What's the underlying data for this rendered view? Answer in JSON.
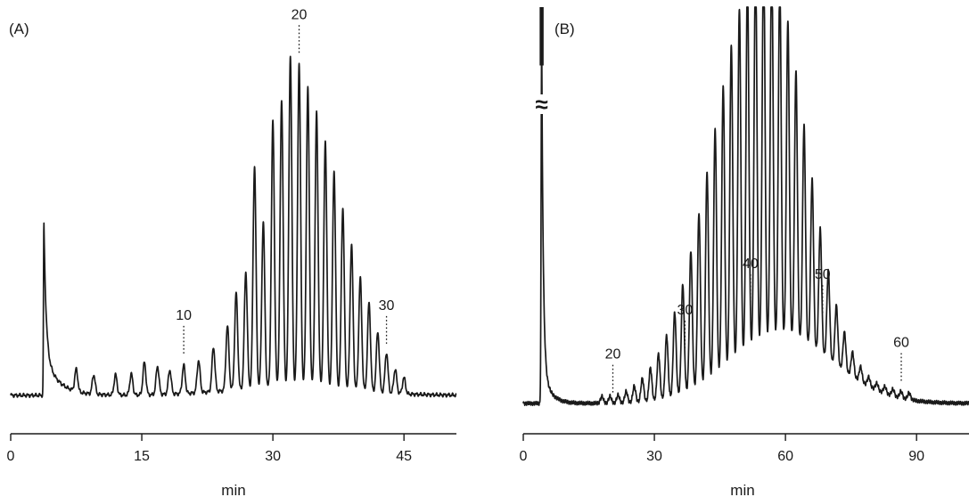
{
  "chart_data": [
    {
      "type": "line",
      "panel_label": "(A)",
      "xlabel": "min",
      "ylabel": "",
      "xlim": [
        0,
        51
      ],
      "ylim": [
        0,
        1
      ],
      "xticks": [
        0,
        15,
        30,
        45
      ],
      "x_tick_labels": [
        "0",
        "15",
        "30",
        "45"
      ],
      "grid": false,
      "solvent_peak": {
        "x": 3.8,
        "y": 0.43
      },
      "baseline": 0.04,
      "peaks": [
        {
          "x": 7.5,
          "y": 0.055
        },
        {
          "x": 9.5,
          "y": 0.048
        },
        {
          "x": 12.0,
          "y": 0.05
        },
        {
          "x": 13.8,
          "y": 0.052
        },
        {
          "x": 15.3,
          "y": 0.08
        },
        {
          "x": 16.8,
          "y": 0.07
        },
        {
          "x": 18.2,
          "y": 0.06
        },
        {
          "x": 19.8,
          "y": 0.07
        },
        {
          "x": 21.5,
          "y": 0.08
        },
        {
          "x": 23.2,
          "y": 0.11
        },
        {
          "x": 24.8,
          "y": 0.16
        },
        {
          "x": 25.8,
          "y": 0.24
        },
        {
          "x": 26.9,
          "y": 0.29
        },
        {
          "x": 27.9,
          "y": 0.55
        },
        {
          "x": 28.9,
          "y": 0.41
        },
        {
          "x": 30.0,
          "y": 0.66
        },
        {
          "x": 31.0,
          "y": 0.71
        },
        {
          "x": 32.0,
          "y": 0.82
        },
        {
          "x": 33.0,
          "y": 0.8
        },
        {
          "x": 34.0,
          "y": 0.74
        },
        {
          "x": 35.0,
          "y": 0.68
        },
        {
          "x": 36.0,
          "y": 0.61
        },
        {
          "x": 37.0,
          "y": 0.54
        },
        {
          "x": 38.0,
          "y": 0.45
        },
        {
          "x": 39.0,
          "y": 0.36
        },
        {
          "x": 40.0,
          "y": 0.28
        },
        {
          "x": 41.0,
          "y": 0.22
        },
        {
          "x": 42.0,
          "y": 0.15
        },
        {
          "x": 43.0,
          "y": 0.1
        },
        {
          "x": 44.0,
          "y": 0.06
        },
        {
          "x": 45.0,
          "y": 0.04
        }
      ],
      "annotations": [
        {
          "label": "10",
          "x": 19.8
        },
        {
          "label": "20",
          "x": 33.0
        },
        {
          "label": "30",
          "x": 43.0
        }
      ]
    },
    {
      "type": "line",
      "panel_label": "(B)",
      "xlabel": "min",
      "ylabel": "",
      "xlim": [
        0,
        102
      ],
      "ylim": [
        0,
        1
      ],
      "xticks": [
        0,
        30,
        60,
        90
      ],
      "x_tick_labels": [
        "0",
        "30",
        "60",
        "90"
      ],
      "grid": false,
      "axis_break": "≈",
      "solvent_peak": {
        "x": 4.2,
        "y": 1.0
      },
      "baseline": 0.02,
      "series_shape": {
        "start": 18,
        "end": 90,
        "center": 55,
        "peak_height": 0.98,
        "spacing": 1.85
      },
      "hump": {
        "center": 60,
        "height": 0.15
      },
      "annotations": [
        {
          "label": "20",
          "x": 20.5
        },
        {
          "label": "30",
          "x": 37.0
        },
        {
          "label": "40",
          "x": 52.0
        },
        {
          "label": "50",
          "x": 68.5
        },
        {
          "label": "60",
          "x": 86.5
        }
      ]
    }
  ]
}
